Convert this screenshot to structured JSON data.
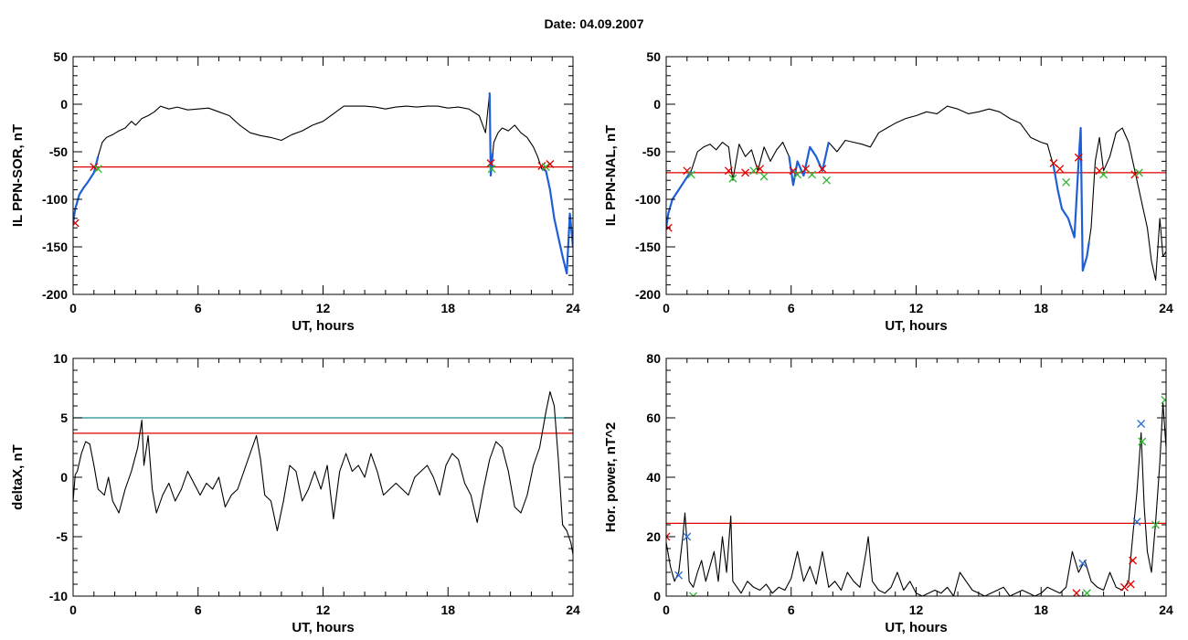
{
  "page": {
    "title": "Date:  04.09.2007"
  },
  "colors": {
    "series": "#000000",
    "highlight": "#1f5fd6",
    "threshold": "#e00000",
    "threshold_alt": "#1a8f8f",
    "marker_red": "#e00000",
    "marker_green": "#2bb82b",
    "marker_blue": "#2a6fd6"
  },
  "chart_data": [
    {
      "id": "panel-ppn-sor",
      "type": "line",
      "xlabel": "UT, hours",
      "ylabel": "IL PPN-SOR, nT",
      "xlim": [
        0,
        24
      ],
      "ylim": [
        -200,
        50
      ],
      "xticks": [
        0,
        6,
        12,
        18,
        24
      ],
      "yticks": [
        50,
        0,
        -50,
        -100,
        -150,
        -200
      ],
      "grid": false,
      "thresholds": [
        {
          "value": -66,
          "color": "#e00000"
        }
      ],
      "series": [
        {
          "color": "#000000",
          "x": [
            0.0,
            0.1,
            0.3,
            0.5,
            0.7,
            1.0,
            1.2,
            1.4,
            1.6,
            1.9,
            2.2,
            2.5,
            2.8,
            3.0,
            3.3,
            3.6,
            3.9,
            4.2,
            4.6,
            5.0,
            5.5,
            6.0,
            6.5,
            7.0,
            7.5,
            8.0,
            8.5,
            9.0,
            9.5,
            10.0,
            10.5,
            11.0,
            11.5,
            12.0,
            12.5,
            13.0,
            13.5,
            14.0,
            14.5,
            15.0,
            15.5,
            16.0,
            16.5,
            17.0,
            17.5,
            18.0,
            18.5,
            19.0,
            19.5,
            19.8,
            20.0,
            20.05,
            20.1,
            20.2,
            20.4,
            20.6,
            20.9,
            21.2,
            21.5,
            21.8,
            22.1,
            22.3,
            22.5,
            22.7,
            22.9,
            23.1,
            23.3,
            23.5,
            23.7,
            23.85,
            24.0
          ],
          "y": [
            -125,
            -110,
            -95,
            -88,
            -82,
            -72,
            -55,
            -40,
            -35,
            -32,
            -28,
            -25,
            -18,
            -22,
            -15,
            -12,
            -8,
            -2,
            -5,
            -3,
            -6,
            -5,
            -4,
            -8,
            -12,
            -22,
            -30,
            -33,
            -35,
            -38,
            -32,
            -28,
            -22,
            -18,
            -10,
            -2,
            -2,
            -2,
            -3,
            -5,
            -3,
            -2,
            -3,
            -2,
            -2,
            -4,
            -3,
            -5,
            -12,
            -30,
            12,
            -75,
            -62,
            -40,
            -30,
            -25,
            -28,
            -22,
            -30,
            -35,
            -45,
            -55,
            -68,
            -70,
            -90,
            -120,
            -140,
            -160,
            -178,
            -115,
            -150
          ]
        }
      ],
      "highlight_ranges": [
        [
          0.0,
          1.2
        ],
        [
          20.0,
          20.15
        ],
        [
          22.5,
          24.0
        ]
      ],
      "markers": [
        {
          "x": 0.1,
          "y": -125,
          "color": "#e00000"
        },
        {
          "x": 1.0,
          "y": -66,
          "color": "#e00000"
        },
        {
          "x": 1.2,
          "y": -68,
          "color": "#2bb82b"
        },
        {
          "x": 20.05,
          "y": -62,
          "color": "#e00000"
        },
        {
          "x": 20.1,
          "y": -68,
          "color": "#2bb82b"
        },
        {
          "x": 22.5,
          "y": -65,
          "color": "#e00000"
        },
        {
          "x": 22.7,
          "y": -66,
          "color": "#2bb82b"
        },
        {
          "x": 22.9,
          "y": -63,
          "color": "#e00000"
        }
      ]
    },
    {
      "id": "panel-ppn-nal",
      "type": "line",
      "xlabel": "UT, hours",
      "ylabel": "IL PPN-NAL, nT",
      "xlim": [
        0,
        24
      ],
      "ylim": [
        -200,
        50
      ],
      "xticks": [
        0,
        6,
        12,
        18,
        24
      ],
      "yticks": [
        50,
        0,
        -50,
        -100,
        -150,
        -200
      ],
      "grid": false,
      "thresholds": [
        {
          "value": -72,
          "color": "#e00000"
        }
      ],
      "series": [
        {
          "color": "#000000",
          "x": [
            0.0,
            0.1,
            0.3,
            0.6,
            0.9,
            1.2,
            1.5,
            1.8,
            2.1,
            2.4,
            2.7,
            3.0,
            3.2,
            3.5,
            3.8,
            4.1,
            4.4,
            4.7,
            5.0,
            5.3,
            5.6,
            5.9,
            6.1,
            6.3,
            6.6,
            6.9,
            7.2,
            7.5,
            7.8,
            8.2,
            8.6,
            9.0,
            9.4,
            9.8,
            10.2,
            10.6,
            11.0,
            11.5,
            12.0,
            12.5,
            13.0,
            13.5,
            14.0,
            14.5,
            15.0,
            15.5,
            16.0,
            16.5,
            17.0,
            17.5,
            18.0,
            18.3,
            18.6,
            18.8,
            19.0,
            19.3,
            19.6,
            19.8,
            19.9,
            20.0,
            20.2,
            20.4,
            20.6,
            20.8,
            21.0,
            21.3,
            21.6,
            21.9,
            22.2,
            22.5,
            22.7,
            22.9,
            23.1,
            23.3,
            23.5,
            23.7,
            23.85,
            24.0
          ],
          "y": [
            -130,
            -115,
            -100,
            -90,
            -80,
            -70,
            -50,
            -45,
            -42,
            -48,
            -40,
            -45,
            -80,
            -42,
            -55,
            -48,
            -70,
            -45,
            -60,
            -48,
            -40,
            -55,
            -85,
            -60,
            -75,
            -45,
            -55,
            -70,
            -40,
            -50,
            -38,
            -40,
            -42,
            -45,
            -30,
            -25,
            -20,
            -15,
            -12,
            -8,
            -10,
            -2,
            -5,
            -10,
            -8,
            -5,
            -8,
            -15,
            -20,
            -35,
            -40,
            -42,
            -65,
            -90,
            -110,
            -120,
            -140,
            -60,
            -25,
            -175,
            -160,
            -130,
            -60,
            -35,
            -70,
            -55,
            -30,
            -25,
            -40,
            -70,
            -90,
            -110,
            -130,
            -165,
            -185,
            -120,
            -160,
            -155
          ]
        }
      ],
      "highlight_ranges": [
        [
          0.0,
          1.2
        ],
        [
          5.9,
          7.8
        ],
        [
          18.6,
          20.3
        ]
      ],
      "markers": [
        {
          "x": 0.1,
          "y": -130,
          "color": "#e00000"
        },
        {
          "x": 1.0,
          "y": -70,
          "color": "#e00000"
        },
        {
          "x": 1.2,
          "y": -74,
          "color": "#2bb82b"
        },
        {
          "x": 3.0,
          "y": -70,
          "color": "#e00000"
        },
        {
          "x": 3.2,
          "y": -78,
          "color": "#2bb82b"
        },
        {
          "x": 3.8,
          "y": -72,
          "color": "#e00000"
        },
        {
          "x": 4.2,
          "y": -70,
          "color": "#2bb82b"
        },
        {
          "x": 4.5,
          "y": -68,
          "color": "#e00000"
        },
        {
          "x": 4.7,
          "y": -76,
          "color": "#2bb82b"
        },
        {
          "x": 6.1,
          "y": -70,
          "color": "#e00000"
        },
        {
          "x": 6.3,
          "y": -74,
          "color": "#2bb82b"
        },
        {
          "x": 6.7,
          "y": -68,
          "color": "#e00000"
        },
        {
          "x": 7.0,
          "y": -74,
          "color": "#2bb82b"
        },
        {
          "x": 7.5,
          "y": -68,
          "color": "#e00000"
        },
        {
          "x": 7.7,
          "y": -80,
          "color": "#2bb82b"
        },
        {
          "x": 18.6,
          "y": -62,
          "color": "#e00000"
        },
        {
          "x": 18.9,
          "y": -68,
          "color": "#e00000"
        },
        {
          "x": 19.2,
          "y": -82,
          "color": "#2bb82b"
        },
        {
          "x": 19.8,
          "y": -56,
          "color": "#e00000"
        },
        {
          "x": 20.8,
          "y": -70,
          "color": "#e00000"
        },
        {
          "x": 21.0,
          "y": -74,
          "color": "#2bb82b"
        },
        {
          "x": 22.5,
          "y": -74,
          "color": "#e00000"
        },
        {
          "x": 22.7,
          "y": -72,
          "color": "#2bb82b"
        }
      ]
    },
    {
      "id": "panel-deltax",
      "type": "line",
      "xlabel": "UT, hours",
      "ylabel": "deltaX, nT",
      "xlim": [
        0,
        24
      ],
      "ylim": [
        -10,
        10
      ],
      "xticks": [
        0,
        6,
        12,
        18,
        24
      ],
      "yticks": [
        10,
        5,
        0,
        -5,
        -10
      ],
      "grid": false,
      "thresholds": [
        {
          "value": 5.0,
          "color": "#1a8f8f"
        },
        {
          "value": 3.7,
          "color": "#e00000"
        }
      ],
      "series": [
        {
          "color": "#000000",
          "x": [
            0.0,
            0.1,
            0.2,
            0.4,
            0.6,
            0.8,
            1.0,
            1.2,
            1.5,
            1.7,
            1.9,
            2.2,
            2.5,
            2.8,
            3.1,
            3.3,
            3.4,
            3.6,
            3.8,
            4.0,
            4.3,
            4.6,
            4.9,
            5.2,
            5.5,
            5.8,
            6.1,
            6.4,
            6.7,
            7.0,
            7.3,
            7.6,
            7.9,
            8.2,
            8.5,
            8.8,
            9.0,
            9.2,
            9.5,
            9.8,
            10.1,
            10.4,
            10.7,
            11.0,
            11.3,
            11.6,
            11.9,
            12.2,
            12.5,
            12.8,
            13.1,
            13.4,
            13.7,
            14.0,
            14.3,
            14.6,
            14.9,
            15.2,
            15.5,
            15.8,
            16.1,
            16.4,
            16.7,
            17.0,
            17.3,
            17.6,
            17.9,
            18.2,
            18.5,
            18.8,
            19.1,
            19.4,
            19.7,
            20.0,
            20.3,
            20.6,
            20.9,
            21.2,
            21.5,
            21.8,
            22.1,
            22.4,
            22.7,
            22.9,
            23.1,
            23.3,
            23.5,
            23.7,
            23.9,
            24.0
          ],
          "y": [
            -2.0,
            0.2,
            0.5,
            2.0,
            3.0,
            2.8,
            1.0,
            -1.0,
            -1.5,
            0.0,
            -2.0,
            -3.0,
            -1.0,
            0.5,
            2.5,
            4.8,
            1.0,
            3.5,
            -1.0,
            -3.0,
            -1.5,
            -0.5,
            -2.0,
            -1.0,
            0.5,
            -0.5,
            -1.5,
            -0.5,
            -1.0,
            0.0,
            -2.5,
            -1.5,
            -1.0,
            0.5,
            2.0,
            3.5,
            1.5,
            -1.5,
            -2.0,
            -4.5,
            -2.0,
            1.0,
            0.5,
            -2.0,
            -1.0,
            0.5,
            -1.0,
            1.0,
            -3.5,
            0.5,
            2.0,
            0.5,
            1.0,
            0.0,
            2.0,
            0.5,
            -1.5,
            -1.0,
            -0.5,
            -1.0,
            -1.5,
            0.0,
            0.5,
            1.0,
            0.0,
            -1.5,
            1.0,
            2.0,
            1.5,
            -0.5,
            -1.5,
            -3.8,
            -1.0,
            1.5,
            3.0,
            2.5,
            0.5,
            -2.5,
            -3.0,
            -1.5,
            1.0,
            2.5,
            5.5,
            7.2,
            6.0,
            1.5,
            -4.0,
            -4.5,
            -5.5,
            -6.5
          ]
        }
      ],
      "highlight_ranges": [],
      "markers": []
    },
    {
      "id": "panel-hor-power",
      "type": "line",
      "xlabel": "UT, hours",
      "ylabel": "Hor. power, nT^2",
      "xlim": [
        0,
        24
      ],
      "ylim": [
        0,
        80
      ],
      "xticks": [
        0,
        6,
        12,
        18,
        24
      ],
      "yticks": [
        80,
        60,
        40,
        20,
        0
      ],
      "grid": false,
      "thresholds": [
        {
          "value": 24.5,
          "color": "#e00000"
        }
      ],
      "series": [
        {
          "color": "#000000",
          "x": [
            0.0,
            0.2,
            0.4,
            0.6,
            0.8,
            0.9,
            1.0,
            1.1,
            1.3,
            1.5,
            1.7,
            1.9,
            2.1,
            2.3,
            2.5,
            2.7,
            2.9,
            3.1,
            3.2,
            3.4,
            3.6,
            3.9,
            4.2,
            4.5,
            4.8,
            5.1,
            5.4,
            5.7,
            6.0,
            6.3,
            6.6,
            6.9,
            7.2,
            7.5,
            7.8,
            8.1,
            8.4,
            8.7,
            9.0,
            9.3,
            9.6,
            9.7,
            9.9,
            10.2,
            10.5,
            10.8,
            11.1,
            11.4,
            11.7,
            12.0,
            12.3,
            12.6,
            12.9,
            13.2,
            13.5,
            13.8,
            14.1,
            14.4,
            14.7,
            15.0,
            15.3,
            15.6,
            15.9,
            16.2,
            16.5,
            16.8,
            17.1,
            17.4,
            17.7,
            18.0,
            18.3,
            18.6,
            18.9,
            19.2,
            19.5,
            19.8,
            20.1,
            20.4,
            20.7,
            21.0,
            21.3,
            21.6,
            21.9,
            22.2,
            22.4,
            22.6,
            22.8,
            22.95,
            23.1,
            23.3,
            23.5,
            23.7,
            23.85,
            24.0
          ],
          "y": [
            18,
            10,
            5,
            8,
            20,
            28,
            18,
            5,
            3,
            8,
            12,
            5,
            10,
            15,
            5,
            20,
            8,
            27,
            5,
            3,
            1,
            5,
            3,
            2,
            4,
            1,
            3,
            2,
            6,
            15,
            5,
            10,
            4,
            15,
            3,
            5,
            2,
            8,
            5,
            3,
            15,
            20,
            5,
            2,
            1,
            3,
            8,
            2,
            5,
            1,
            0,
            1,
            2,
            1,
            3,
            0,
            8,
            5,
            2,
            1,
            0,
            1,
            2,
            3,
            0,
            1,
            2,
            1,
            0,
            1,
            3,
            2,
            1,
            3,
            15,
            8,
            12,
            5,
            3,
            2,
            8,
            3,
            2,
            5,
            20,
            35,
            55,
            30,
            15,
            8,
            25,
            45,
            65,
            50
          ]
        }
      ],
      "highlight_ranges": [],
      "markers": [
        {
          "x": 0.0,
          "y": 20,
          "color": "#e00000"
        },
        {
          "x": 0.6,
          "y": 7,
          "color": "#2a6fd6"
        },
        {
          "x": 1.0,
          "y": 20,
          "color": "#2a6fd6"
        },
        {
          "x": 1.3,
          "y": 0,
          "color": "#2bb82b"
        },
        {
          "x": 19.7,
          "y": 1,
          "color": "#e00000"
        },
        {
          "x": 20.0,
          "y": 11,
          "color": "#2a6fd6"
        },
        {
          "x": 20.2,
          "y": 1,
          "color": "#2bb82b"
        },
        {
          "x": 22.0,
          "y": 3,
          "color": "#e00000"
        },
        {
          "x": 22.3,
          "y": 4,
          "color": "#e00000"
        },
        {
          "x": 22.4,
          "y": 12,
          "color": "#e00000"
        },
        {
          "x": 22.6,
          "y": 25,
          "color": "#2a6fd6"
        },
        {
          "x": 22.8,
          "y": 58,
          "color": "#2a6fd6"
        },
        {
          "x": 22.85,
          "y": 52,
          "color": "#2bb82b"
        },
        {
          "x": 23.5,
          "y": 24,
          "color": "#2bb82b"
        },
        {
          "x": 23.95,
          "y": 66,
          "color": "#2bb82b"
        }
      ]
    }
  ]
}
